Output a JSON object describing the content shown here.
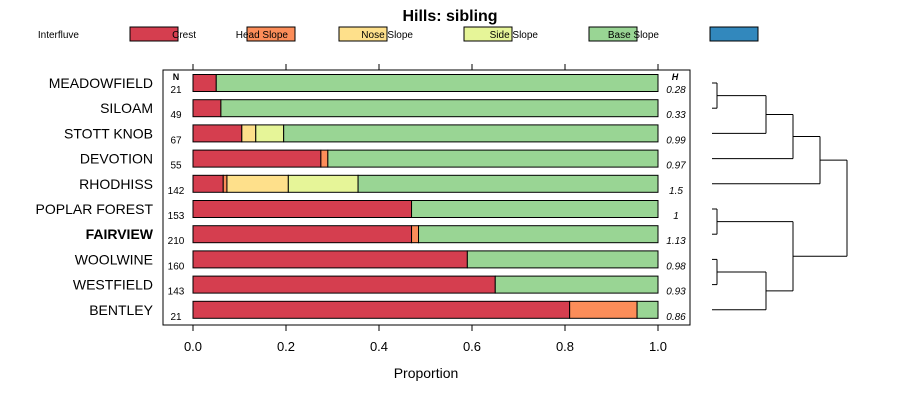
{
  "chart_data": {
    "type": "bar",
    "stacked": true,
    "orientation": "horizontal",
    "title": "Hills: sibling",
    "xlabel": "Proportion",
    "xlim": [
      0,
      1
    ],
    "xticks": [
      "0.0",
      "0.2",
      "0.4",
      "0.6",
      "0.8",
      "1.0"
    ],
    "n_header": "N",
    "h_header": "H",
    "legend": [
      {
        "name": "Interfluve",
        "color": "#d53e4f"
      },
      {
        "name": "Crest",
        "color": "#fc8d59"
      },
      {
        "name": "Head Slope",
        "color": "#fee08b"
      },
      {
        "name": "Nose Slope",
        "color": "#e6f598"
      },
      {
        "name": "Side Slope",
        "color": "#99d594"
      },
      {
        "name": "Base Slope",
        "color": "#3288bd"
      }
    ],
    "rows": [
      {
        "label": "MEADOWFIELD",
        "bold": false,
        "n": "21",
        "h": "0.28",
        "values": [
          0.05,
          0,
          0,
          0,
          0.95,
          0
        ]
      },
      {
        "label": "SILOAM",
        "bold": false,
        "n": "49",
        "h": "0.33",
        "values": [
          0.06,
          0,
          0,
          0,
          0.94,
          0
        ]
      },
      {
        "label": "STOTT KNOB",
        "bold": false,
        "n": "67",
        "h": "0.99",
        "values": [
          0.105,
          0,
          0.03,
          0.06,
          0.805,
          0
        ]
      },
      {
        "label": "DEVOTION",
        "bold": false,
        "n": "55",
        "h": "0.97",
        "values": [
          0.275,
          0.015,
          0,
          0,
          0.71,
          0
        ]
      },
      {
        "label": "RHODHISS",
        "bold": false,
        "n": "142",
        "h": "1.5",
        "values": [
          0.065,
          0.008,
          0.132,
          0.15,
          0.645,
          0
        ]
      },
      {
        "label": "POPLAR FOREST",
        "bold": false,
        "n": "153",
        "h": "1",
        "values": [
          0.47,
          0,
          0,
          0,
          0.53,
          0
        ]
      },
      {
        "label": "FAIRVIEW",
        "bold": true,
        "n": "210",
        "h": "1.13",
        "values": [
          0.47,
          0.015,
          0,
          0,
          0.515,
          0
        ]
      },
      {
        "label": "WOOLWINE",
        "bold": false,
        "n": "160",
        "h": "0.98",
        "values": [
          0.59,
          0,
          0,
          0,
          0.41,
          0
        ]
      },
      {
        "label": "WESTFIELD",
        "bold": false,
        "n": "143",
        "h": "0.93",
        "values": [
          0.65,
          0,
          0,
          0,
          0.35,
          0
        ]
      },
      {
        "label": "BENTLEY",
        "bold": false,
        "n": "21",
        "h": "0.86",
        "values": [
          0.81,
          0.145,
          0,
          0,
          0.045,
          0
        ]
      }
    ],
    "dendrogram_tree": [
      [
        [
          [
            [
              "MEADOWFIELD",
              "SILOAM"
            ],
            "STOTT KNOB"
          ],
          "DEVOTION"
        ],
        "RHODHISS"
      ],
      [
        [
          "POPLAR FOREST",
          "FAIRVIEW"
        ],
        [
          [
            "WOOLWINE",
            "WESTFIELD"
          ],
          "BENTLEY"
        ]
      ]
    ]
  }
}
